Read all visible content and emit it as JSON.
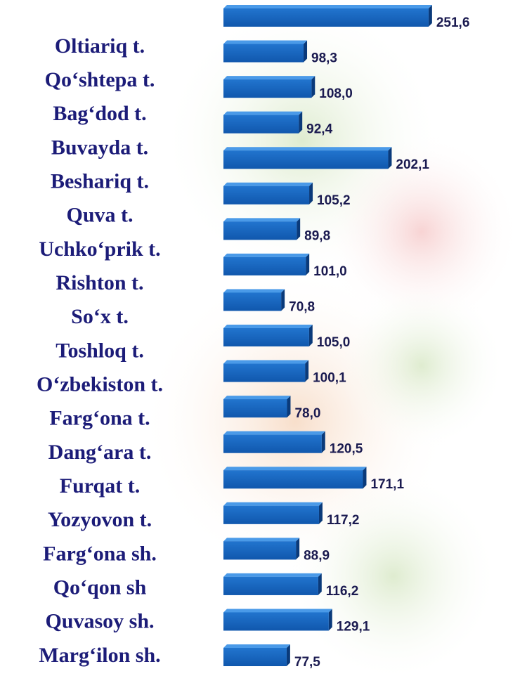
{
  "chart_data": {
    "type": "bar",
    "orientation": "horizontal",
    "color": "#1565c0",
    "categories": [
      "Oltiariq t.",
      "Qo‘shtepa t.",
      "Bag‘dod t.",
      "Buvayda t.",
      "Beshariq t.",
      "Quva t.",
      "Uchko‘prik t.",
      "Rishton t.",
      "So‘x t.",
      "Toshloq t.",
      "O‘zbekiston t.",
      "Farg‘ona t.",
      "Dang‘ara t.",
      "Furqat t.",
      "Yozyovon t.",
      "Farg‘ona sh.",
      "Qo‘qon sh",
      "Quvasoy sh.",
      "Marg‘ilon sh."
    ],
    "values": [
      251.6,
      98.3,
      108.0,
      92.4,
      202.1,
      105.2,
      89.8,
      101.0,
      70.8,
      105.0,
      100.1,
      78.0,
      120.5,
      171.1,
      117.2,
      88.9,
      116.2,
      129.1,
      77.5
    ],
    "value_labels": [
      "251,6",
      "98,3",
      "108,0",
      "92,4",
      "202,1",
      "105,2",
      "89,8",
      "101,0",
      "70,8",
      "105,0",
      "100,1",
      "78,0",
      "120,5",
      "171,1",
      "117,2",
      "88,9",
      "116,2",
      "129,1",
      "77,5"
    ]
  }
}
